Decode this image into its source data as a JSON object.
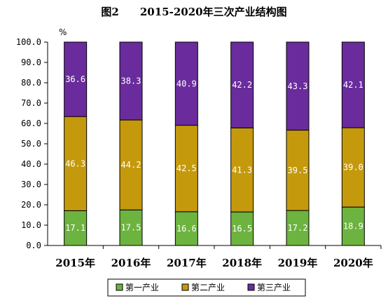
{
  "chart_data": {
    "type": "bar",
    "stacked": true,
    "title": "图2　　2015-2020年三次产业结构图",
    "unit": "%",
    "categories": [
      "2015年",
      "2016年",
      "2017年",
      "2018年",
      "2019年",
      "2020年"
    ],
    "series": [
      {
        "name": "第一产业",
        "color": "#6db33f",
        "values": [
          17.1,
          17.5,
          16.6,
          16.5,
          17.2,
          18.9
        ]
      },
      {
        "name": "第二产业",
        "color": "#c49a0c",
        "values": [
          46.3,
          44.2,
          42.5,
          41.3,
          39.5,
          39.0
        ]
      },
      {
        "name": "第三产业",
        "color": "#6a2c9c",
        "values": [
          36.6,
          38.3,
          40.9,
          42.2,
          43.3,
          42.1
        ]
      }
    ],
    "ylim": [
      0,
      100
    ],
    "yticks": [
      "0.0",
      "10.0",
      "20.0",
      "30.0",
      "40.0",
      "50.0",
      "60.0",
      "70.0",
      "80.0",
      "90.0",
      "100.0"
    ],
    "grid": false,
    "legend": "bottom"
  }
}
